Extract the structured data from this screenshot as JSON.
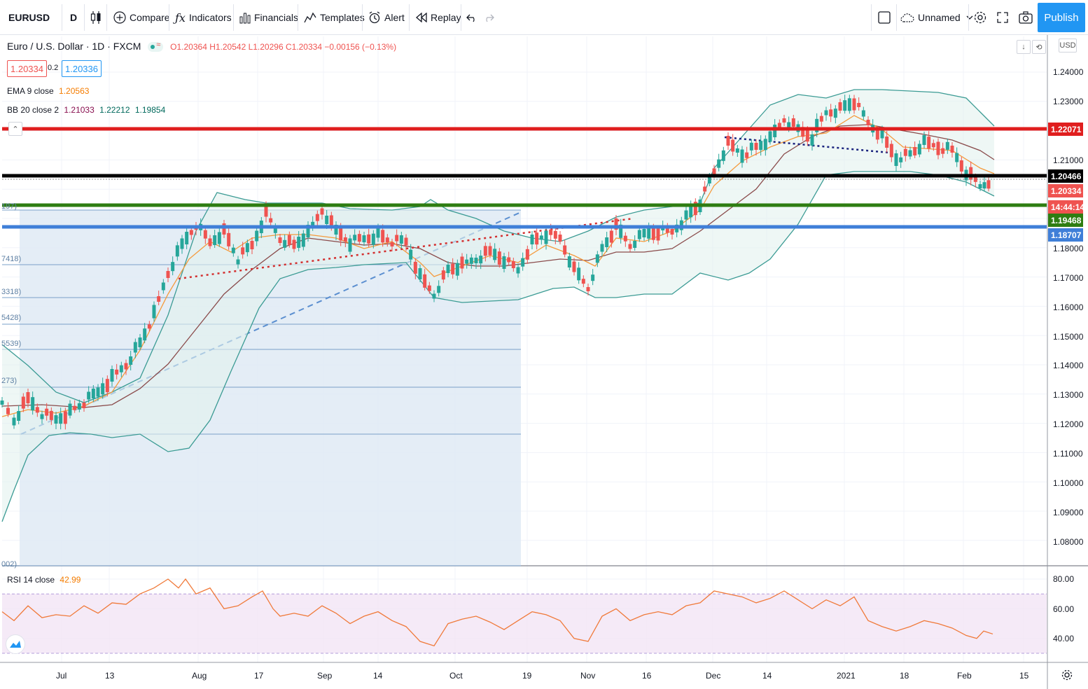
{
  "toolbar": {
    "symbol": "EURUSD",
    "interval": "D",
    "compare": "Compare",
    "indicators": "Indicators",
    "financials": "Financials",
    "templates": "Templates",
    "alert": "Alert",
    "replay": "Replay",
    "layout_name": "Unnamed",
    "publish": "Publish"
  },
  "legend": {
    "title": "Euro / U.S. Dollar · 1D · FXCM",
    "ohlc": "O1.20364 H1.20542 L1.20296 C1.20334 −0.00156 (−0.13%)",
    "bid": "1.20334",
    "spread": "0.2",
    "ask": "1.20336",
    "ema_label": "EMA 9 close",
    "ema_value": "1.20563",
    "bb_label": "BB 20 close 2",
    "bb_basis": "1.21033",
    "bb_upper": "1.22212",
    "bb_lower": "1.19854",
    "rsi_label": "RSI 14 close",
    "rsi_value": "42.99"
  },
  "price_axis": {
    "currency": "USD",
    "ticks": [
      "1.24000",
      "1.23000",
      "1.21000",
      "1.18000",
      "1.17000",
      "1.16000",
      "1.15000",
      "1.14000",
      "1.13000",
      "1.12000",
      "1.11000",
      "1.10000",
      "1.09000",
      "1.08000"
    ],
    "tags": [
      {
        "text": "1.22071",
        "color": "#e01e1e"
      },
      {
        "text": "1.20466",
        "color": "#000000"
      },
      {
        "text": "1.20334",
        "color": "#ef5350"
      },
      {
        "text": "14:44:14",
        "color": "#ef5350"
      },
      {
        "text": "1.19468",
        "color": "#2e7d12"
      },
      {
        "text": "1.18707",
        "color": "#3f7fd8"
      }
    ]
  },
  "rsi_axis": {
    "ticks": [
      "80.00",
      "60.00",
      "40.00"
    ]
  },
  "time_axis": {
    "labels": [
      "Jul",
      "13",
      "Aug",
      "17",
      "Sep",
      "14",
      "Oct",
      "19",
      "Nov",
      "16",
      "Dec",
      "14",
      "2021",
      "18",
      "Feb",
      "15"
    ]
  },
  "fib_labels": [
    "197)",
    "7418)",
    "3318)",
    "5428)",
    "5539)",
    "273)",
    "002)"
  ],
  "chart_data": {
    "type": "candlestick",
    "symbol": "EURUSD",
    "range": "Jul 2020 – Feb 2021",
    "ylim": [
      1.075,
      1.245
    ],
    "horizontal_levels": [
      {
        "price": 1.22071,
        "color": "#e01e1e"
      },
      {
        "price": 1.20466,
        "color": "#000000"
      },
      {
        "price": 1.19468,
        "color": "#2e7d12"
      },
      {
        "price": 1.18707,
        "color": "#3f7fd8"
      }
    ],
    "last_close": 1.20334,
    "indicators": {
      "ema9": 1.20563,
      "bb20": {
        "basis": 1.21033,
        "upper": 1.22212,
        "lower": 1.19854
      },
      "rsi14": 42.99
    },
    "rsi_bands": [
      70,
      30
    ]
  }
}
